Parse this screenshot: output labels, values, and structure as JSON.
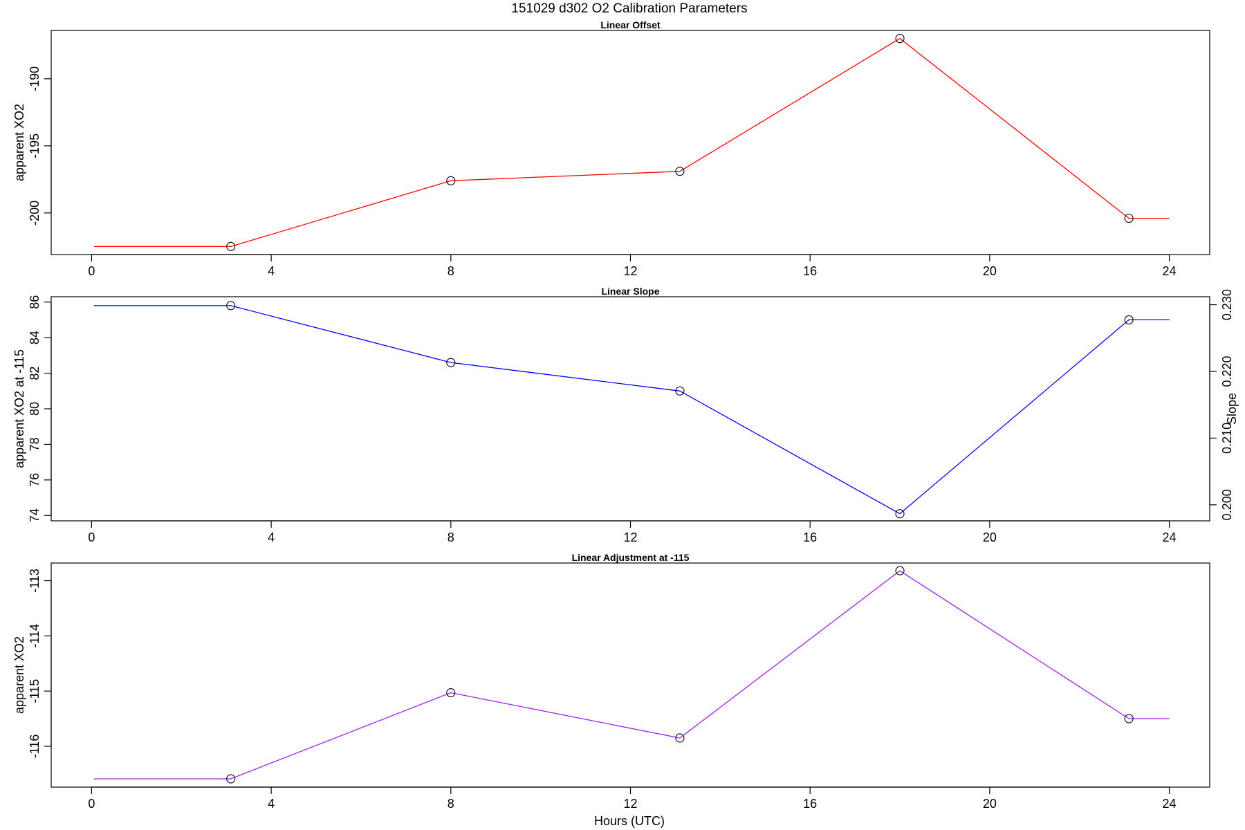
{
  "title": "151029   d302   O2 Calibration Parameters",
  "xlabel": "Hours (UTC)",
  "chart_data": [
    {
      "type": "line",
      "title": "Linear Offset",
      "ylabel": "apparent XO2",
      "color": "#ff0000",
      "xlim": [
        -0.9,
        24.9
      ],
      "ylim": [
        -203.1,
        -186.4
      ],
      "xticks": [
        0,
        4,
        8,
        12,
        16,
        20,
        24
      ],
      "yticks": [
        -200,
        -195,
        -190
      ],
      "points": [
        [
          3.1,
          -202.5
        ],
        [
          8.0,
          -197.6
        ],
        [
          13.1,
          -196.9
        ],
        [
          18.0,
          -187.0
        ],
        [
          23.1,
          -200.4
        ]
      ],
      "line": [
        [
          0.05,
          -202.5
        ],
        [
          3.1,
          -202.5
        ],
        [
          8.0,
          -197.6
        ],
        [
          13.1,
          -196.9
        ],
        [
          18.0,
          -187.0
        ],
        [
          23.1,
          -200.4
        ],
        [
          24.0,
          -200.4
        ]
      ]
    },
    {
      "type": "line",
      "title": "Linear Slope",
      "ylabel": "apparent XO2 at -115",
      "y2label": "Slope",
      "color": "#0000ff",
      "xlim": [
        -0.9,
        24.9
      ],
      "ylim": [
        73.7,
        86.3
      ],
      "xticks": [
        0,
        4,
        8,
        12,
        16,
        20,
        24
      ],
      "yticks": [
        74,
        76,
        78,
        80,
        82,
        84,
        86
      ],
      "y2ticks": [
        {
          "label": "0.200",
          "at": 74.6
        },
        {
          "label": "0.210",
          "at": 78.35
        },
        {
          "label": "0.220",
          "at": 82.1
        },
        {
          "label": "0.230",
          "at": 85.85
        }
      ],
      "points": [
        [
          3.1,
          85.8
        ],
        [
          8.0,
          82.6
        ],
        [
          13.1,
          81.0
        ],
        [
          18.0,
          74.1
        ],
        [
          23.1,
          85.0
        ]
      ],
      "line": [
        [
          0.05,
          85.8
        ],
        [
          3.1,
          85.8
        ],
        [
          8.0,
          82.6
        ],
        [
          13.1,
          81.0
        ],
        [
          18.0,
          74.1
        ],
        [
          23.1,
          85.0
        ],
        [
          24.0,
          85.0
        ]
      ]
    },
    {
      "type": "line",
      "title": "Linear Adjustment at -115",
      "ylabel": "apparent XO2",
      "color": "#a020f0",
      "xlim": [
        -0.9,
        24.9
      ],
      "ylim": [
        -116.74,
        -112.68
      ],
      "xticks": [
        0,
        4,
        8,
        12,
        16,
        20,
        24
      ],
      "yticks": [
        -116,
        -115,
        -114,
        -113
      ],
      "points": [
        [
          3.1,
          -116.59
        ],
        [
          8.0,
          -115.03
        ],
        [
          13.1,
          -115.85
        ],
        [
          18.0,
          -112.82
        ],
        [
          23.1,
          -115.5
        ]
      ],
      "line": [
        [
          0.05,
          -116.59
        ],
        [
          3.1,
          -116.59
        ],
        [
          8.0,
          -115.03
        ],
        [
          13.1,
          -115.85
        ],
        [
          18.0,
          -112.82
        ],
        [
          23.1,
          -115.5
        ],
        [
          24.0,
          -115.5
        ]
      ]
    }
  ]
}
